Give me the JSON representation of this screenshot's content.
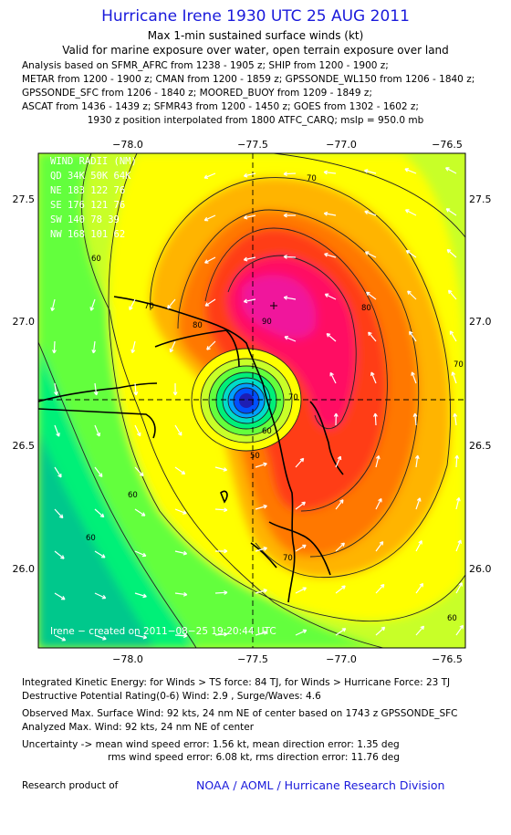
{
  "header": {
    "title": "Hurricane Irene 1930 UTC 25 AUG 2011",
    "subtitle1": "Max 1-min sustained surface winds (kt)",
    "subtitle2": "Valid for marine exposure over water, open terrain exposure over land"
  },
  "analysis_lines": [
    "Analysis based on SFMR_AFRC from 1238 - 1905 z; SHIP from 1200 - 1900 z;",
    "METAR from 1200 - 1900 z; CMAN from 1200 - 1859 z; GPSSONDE_WL150 from 1206 - 1840 z;",
    "GPSSONDE_SFC from 1206 - 1840 z; MOORED_BUOY from 1209 - 1849 z;",
    "ASCAT from 1436 - 1439 z; SFMR43 from 1200 - 1450 z; GOES from 1302 - 1602 z;"
  ],
  "center_note": "1930 z position interpolated from 1800 ATFC_CARQ; mslp = 950.0 mb",
  "map": {
    "lon_ticks": [
      "−78.0",
      "−77.5",
      "−77.0",
      "−76.5"
    ],
    "lat_ticks": [
      "27.5",
      "27.0",
      "26.5",
      "26.0"
    ],
    "contour_labels": [
      "70",
      "60",
      "70",
      "80",
      "90",
      "80",
      "70",
      "60",
      "50",
      "60",
      "70",
      "60",
      "70",
      "60"
    ],
    "wind_radii": {
      "title": "WIND RADII (NM)",
      "header": "QD  34K  50K  64K",
      "rows": [
        "NE  183  122   76",
        "SE  176  121   76",
        "SW  140   78   39",
        "NW  168  101   62"
      ]
    },
    "credit": "Irene  −  created  on  2011−08−25  19:20:44  UTC",
    "colors": {
      "w30": "#00c88c",
      "w40": "#00f078",
      "w50": "#64ff3c",
      "w60": "#c8ff28",
      "w64": "#ffff00",
      "w70": "#ffb400",
      "w80": "#ff7800",
      "w85": "#ff3c14",
      "w90": "#ff0a64",
      "w95": "#f0149c"
    }
  },
  "footer": {
    "ike": "Integrated Kinetic Energy:  for Winds > TS force: 84 TJ,  for Winds > Hurricane Force: 23 TJ",
    "dpr": "Destructive Potential Rating(0-6)   Wind: 2.9 , Surge/Waves: 4.6",
    "obs": "Observed Max. Surface Wind: 92 kts, 24 nm NE of center based on 1743 z GPSSONDE_SFC",
    "ana": "Analyzed Max. Wind: 92 kts, 24 nm NE of center",
    "unc1": "Uncertainty -> mean wind speed error: 1.56 kt,   mean direction error: 1.35 deg",
    "unc2": "rms wind speed error: 6.08 kt,   rms direction error: 11.76 deg",
    "research": "Research product of",
    "noaa": "NOAA / AOML / Hurricane Research Division"
  }
}
